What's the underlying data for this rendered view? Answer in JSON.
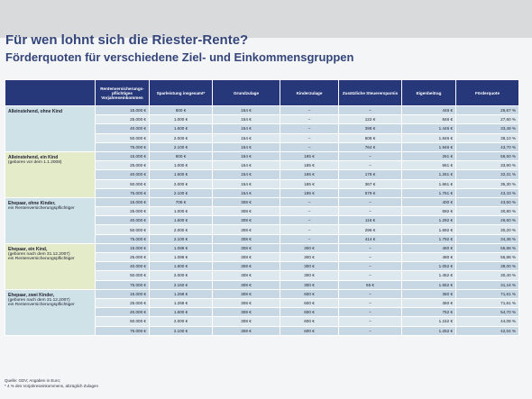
{
  "header": {
    "title": "Für wen lohnt sich die Riester-Rente?",
    "subtitle": "Förderquoten für verschiedene Ziel- und Einkommensgruppen"
  },
  "table": {
    "columns": [
      "Rentenversicherungs-pflichtiges Vorjahreseinkommen",
      "Sparleistung insgesamt*",
      "Grundzulage",
      "Kinderzulage",
      "Zusätzliche Steuerersparnis",
      "Eigenbeitrag",
      "Förderquote"
    ],
    "groups": [
      {
        "lines": [
          "Alleinstehend, ohne Kind"
        ],
        "rows": [
          [
            "15.000 €",
            "600 €",
            "154 €",
            "–",
            "–",
            "446 €",
            "25,67 %"
          ],
          [
            "25.000 €",
            "1.000 €",
            "154 €",
            "–",
            "122 €",
            "846 €",
            "27,60 %"
          ],
          [
            "40.000 €",
            "1.600 €",
            "154 €",
            "–",
            "398 €",
            "1.446 €",
            "33,48 %"
          ],
          [
            "50.000 €",
            "2.000 €",
            "154 €",
            "–",
            "608 €",
            "1.846 €",
            "38,10 %"
          ],
          [
            "75.000 €",
            "2.100 €",
            "154 €",
            "–",
            "764 €",
            "1.946 €",
            "43,70 %"
          ]
        ]
      },
      {
        "lines": [
          "Alleinstehend, ein Kind",
          "(geboren vor dem 1.1.2008)"
        ],
        "rows": [
          [
            "15.000 €",
            "600 €",
            "154 €",
            "185 €",
            "–",
            "261 €",
            "56,50 %"
          ],
          [
            "25.000 €",
            "1.000 €",
            "154 €",
            "185 €",
            "–",
            "661 €",
            "33,90 %"
          ],
          [
            "40.000 €",
            "1.600 €",
            "154 €",
            "185 €",
            "178 €",
            "1.261 €",
            "32,31 %"
          ],
          [
            "50.000 €",
            "2.000 €",
            "154 €",
            "185 €",
            "367 €",
            "1.661 €",
            "35,30 %"
          ],
          [
            "75.000 €",
            "2.100 €",
            "154 €",
            "185 €",
            "579 €",
            "1.761 €",
            "43,43 %"
          ]
        ]
      },
      {
        "lines": [
          "Ehepaar, ohne Kinder,",
          "ein Rentenversicherungspflichtiger"
        ],
        "rows": [
          [
            "15.000 €",
            "708 €",
            "308 €",
            "–",
            "–",
            "400 €",
            "43,50 %"
          ],
          [
            "25.000 €",
            "1.000 €",
            "308 €",
            "–",
            "–",
            "692 €",
            "30,80 %"
          ],
          [
            "40.000 €",
            "1.600 €",
            "308 €",
            "–",
            "116 €",
            "1.292 €",
            "26,50 %"
          ],
          [
            "50.000 €",
            "2.000 €",
            "308 €",
            "–",
            "296 €",
            "1.692 €",
            "30,20 %"
          ],
          [
            "75.000 €",
            "2.100 €",
            "308 €",
            "–",
            "414 €",
            "1.792 €",
            "34,38 %"
          ]
        ]
      },
      {
        "lines": [
          "Ehepaar, ein Kind,",
          "(geboren nach dem 31.12.2007)",
          "ein Rentenversicherungspflichtiger"
        ],
        "rows": [
          [
            "15.000 €",
            "1.088 €",
            "308 €",
            "300 €",
            "–",
            "480 €",
            "55,88 %"
          ],
          [
            "25.000 €",
            "1.088 €",
            "308 €",
            "300 €",
            "–",
            "480 €",
            "55,88 %"
          ],
          [
            "40.000 €",
            "1.600 €",
            "308 €",
            "300 €",
            "–",
            "1.052 €",
            "38,00 %"
          ],
          [
            "50.000 €",
            "2.000 €",
            "308 €",
            "300 €",
            "–",
            "1.452 €",
            "30,40 %"
          ],
          [
            "75.000 €",
            "2.160 €",
            "308 €",
            "300 €",
            "65 €",
            "1.552 €",
            "31,16 %"
          ]
        ]
      },
      {
        "lines": [
          "Ehepaar, zwei Kinder,",
          "(geboren nach dem 31.12.2007)",
          "ein Rentenversicherungspflichtiger"
        ],
        "rows": [
          [
            "15.000 €",
            "1.268 €",
            "308 €",
            "600 €",
            "–",
            "360 €",
            "71,61 %"
          ],
          [
            "25.000 €",
            "1.268 €",
            "308 €",
            "600 €",
            "–",
            "360 €",
            "71,61 %"
          ],
          [
            "40.000 €",
            "1.600 €",
            "308 €",
            "600 €",
            "–",
            "752 €",
            "54,70 %"
          ],
          [
            "50.000 €",
            "2.000 €",
            "308 €",
            "600 €",
            "–",
            "1.152 €",
            "44,08 %"
          ],
          [
            "75.000 €",
            "2.100 €",
            "308 €",
            "600 €",
            "–",
            "1.252 €",
            "42,04 %"
          ]
        ]
      }
    ]
  },
  "footer": [
    "Quelle: GDV; Angaben in Euro;",
    "* 4 % des Vorjahreseinkommens, abzüglich Zulagen"
  ]
}
